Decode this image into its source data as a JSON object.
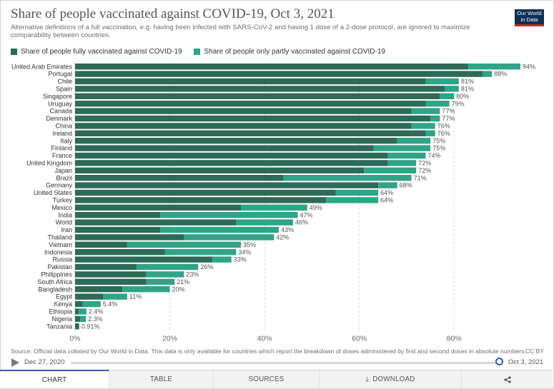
{
  "header": {
    "title": "Share of people vaccinated against COVID-19, Oct 3, 2021",
    "subtitle": "Alternative definitions of a full vaccination, e.g. having been infected with SARS-CoV-2 and having 1 dose of a 2-dose protocol, are ignored to maximize comparability between countries.",
    "logo_line1": "Our World",
    "logo_line2": "in Data"
  },
  "legend": {
    "full_label": "Share of people fully vaccinated against COVID-19",
    "partial_label": "Share of people only partly vaccinated against COVID-19"
  },
  "colors": {
    "full": "#2d6a57",
    "partial": "#2fa486"
  },
  "chart_data": {
    "type": "bar",
    "orientation": "horizontal",
    "stacked": true,
    "title": "Share of people vaccinated against COVID-19, Oct 3, 2021",
    "xlim": [
      0,
      94
    ],
    "x_ticks": [
      0,
      20,
      40,
      60,
      80
    ],
    "x_tick_labels": [
      "0%",
      "20%",
      "40%",
      "60%",
      "80%"
    ],
    "grid": true,
    "categories": [
      "United Arab Emirates",
      "Portugal",
      "Chile",
      "Spain",
      "Singapore",
      "Uruguay",
      "Canada",
      "Denmark",
      "China",
      "Ireland",
      "Italy",
      "Finland",
      "France",
      "United Kingdom",
      "Japan",
      "Brazil",
      "Germany",
      "United States",
      "Turkey",
      "Mexico",
      "India",
      "World",
      "Iran",
      "Thailand",
      "Vietnam",
      "Indonesia",
      "Russia",
      "Pakistan",
      "Philippines",
      "South Africa",
      "Bangladesh",
      "Egypt",
      "Kenya",
      "Ethiopia",
      "Nigeria",
      "Tanzania"
    ],
    "series": [
      {
        "name": "Share of people fully vaccinated against COVID-19",
        "values": [
          83,
          86,
          74,
          78,
          77,
          74,
          71,
          75,
          71,
          74,
          68,
          63,
          66,
          66,
          61,
          44,
          64,
          55,
          53,
          35,
          18,
          34,
          18,
          23,
          11,
          19,
          29,
          13,
          15,
          15,
          10,
          6,
          1.6,
          0.8,
          1.1,
          0.8
        ]
      },
      {
        "name": "Share of people only partly vaccinated against COVID-19",
        "values": [
          11,
          2,
          7,
          3,
          3,
          5,
          6,
          2,
          5,
          2,
          7,
          12,
          8,
          6,
          11,
          27,
          4,
          9,
          11,
          14,
          29,
          12,
          25,
          19,
          24,
          15,
          4,
          13,
          8,
          6,
          10,
          5,
          3.8,
          1.6,
          1.2,
          0.11
        ]
      }
    ],
    "total_labels": [
      "94%",
      "88%",
      "81%",
      "81%",
      "80%",
      "79%",
      "77%",
      "77%",
      "76%",
      "76%",
      "75%",
      "75%",
      "74%",
      "72%",
      "72%",
      "71%",
      "68%",
      "64%",
      "64%",
      "49%",
      "47%",
      "46%",
      "43%",
      "42%",
      "35%",
      "34%",
      "33%",
      "26%",
      "23%",
      "21%",
      "20%",
      "11%",
      "5.4%",
      "2.4%",
      "2.3%",
      "0.91%"
    ]
  },
  "footer": {
    "source": "Source: Official data collated by Our World in Data. This data is only available for countries which report the breakdown of doses administered by first and second doses in absolute numbers.",
    "license": "CC BY"
  },
  "timeline": {
    "start": "Dec 27, 2020",
    "end": "Oct 3, 2021"
  },
  "tabs": {
    "chart": "CHART",
    "table": "TABLE",
    "sources": "SOURCES",
    "download": "DOWNLOAD"
  }
}
